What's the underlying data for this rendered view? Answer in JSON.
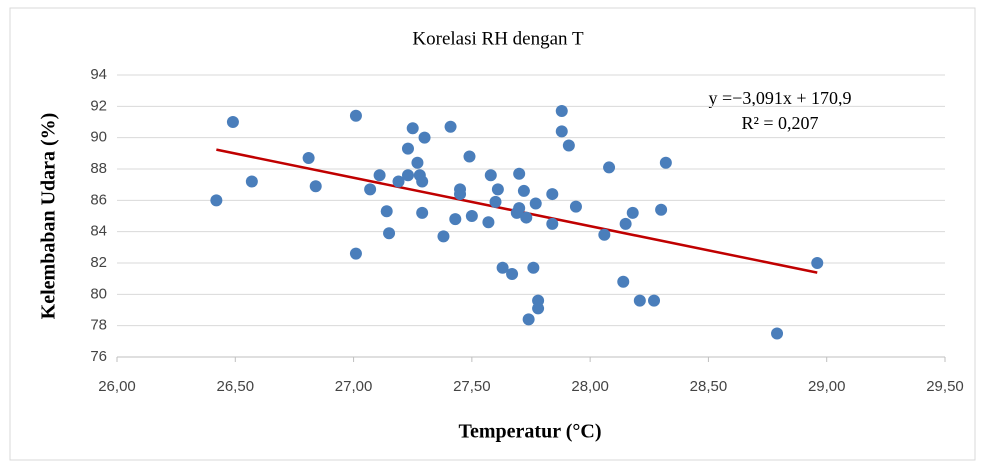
{
  "chart_data": {
    "type": "scatter",
    "title": "Korelasi RH dengan T",
    "xlabel": "Temperatur (°C)",
    "ylabel": "Kelembaban Udara (%)",
    "annotations": [
      "y =−3,091x + 170,9",
      "R² = 0,207"
    ],
    "trendline": {
      "slope": -3.091,
      "intercept": 170.9,
      "color": "#c00000"
    },
    "color": "#4a7ebb",
    "grid": true,
    "xlim": [
      26,
      29.5
    ],
    "ylim": [
      76,
      94
    ],
    "xticks": [
      {
        "value": 26,
        "label": "26,00"
      },
      {
        "value": 26.5,
        "label": "26,50"
      },
      {
        "value": 27,
        "label": "27,00"
      },
      {
        "value": 27.5,
        "label": "27,50"
      },
      {
        "value": 28,
        "label": "28,00"
      },
      {
        "value": 28.5,
        "label": "28,50"
      },
      {
        "value": 29,
        "label": "29,00"
      },
      {
        "value": 29.5,
        "label": "29,50"
      }
    ],
    "yticks": [
      76,
      78,
      80,
      82,
      84,
      86,
      88,
      90,
      92,
      94
    ],
    "x": [
      26.42,
      26.49,
      26.57,
      26.81,
      26.84,
      27.01,
      27.01,
      27.07,
      27.11,
      27.14,
      27.15,
      27.19,
      27.23,
      27.23,
      27.25,
      27.27,
      27.28,
      27.29,
      27.29,
      27.3,
      27.38,
      27.41,
      27.43,
      27.45,
      27.45,
      27.49,
      27.5,
      27.57,
      27.58,
      27.6,
      27.61,
      27.63,
      27.67,
      27.69,
      27.7,
      27.7,
      27.72,
      27.73,
      27.74,
      27.76,
      27.77,
      27.78,
      27.78,
      27.84,
      27.84,
      27.88,
      27.88,
      27.91,
      27.94,
      28.06,
      28.08,
      28.14,
      28.15,
      28.18,
      28.21,
      28.27,
      28.3,
      28.32,
      28.79,
      28.96
    ],
    "values": [
      86.0,
      91.0,
      87.2,
      88.7,
      86.9,
      91.4,
      82.6,
      86.7,
      87.6,
      85.3,
      83.9,
      87.2,
      87.6,
      89.3,
      90.6,
      88.4,
      87.6,
      87.2,
      85.2,
      90.0,
      83.7,
      90.7,
      84.8,
      86.7,
      86.4,
      88.8,
      85.0,
      84.6,
      87.6,
      85.9,
      86.7,
      81.7,
      81.3,
      85.2,
      87.7,
      85.5,
      86.6,
      84.9,
      78.4,
      81.7,
      85.8,
      79.6,
      79.1,
      86.4,
      84.5,
      91.7,
      90.4,
      89.5,
      85.6,
      83.8,
      88.1,
      80.8,
      84.5,
      85.2,
      79.6,
      79.6,
      85.4,
      88.4,
      77.5,
      82.0
    ]
  }
}
